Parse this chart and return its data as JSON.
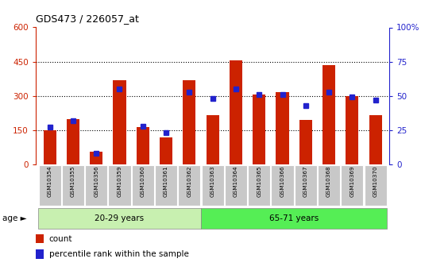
{
  "title": "GDS473 / 226057_at",
  "samples": [
    "GSM10354",
    "GSM10355",
    "GSM10356",
    "GSM10359",
    "GSM10360",
    "GSM10361",
    "GSM10362",
    "GSM10363",
    "GSM10364",
    "GSM10365",
    "GSM10366",
    "GSM10367",
    "GSM10368",
    "GSM10369",
    "GSM10370"
  ],
  "counts": [
    150,
    200,
    55,
    370,
    165,
    120,
    370,
    215,
    455,
    305,
    315,
    195,
    435,
    300,
    215
  ],
  "percentiles": [
    27,
    32,
    8,
    55,
    28,
    23,
    53,
    48,
    55,
    51,
    51,
    43,
    53,
    49,
    47
  ],
  "group1_label": "20-29 years",
  "group2_label": "65-71 years",
  "group1_count": 7,
  "group2_count": 8,
  "bar_color": "#cc2200",
  "marker_color": "#2222cc",
  "age_label": "age",
  "group1_bg": "#c8f0b0",
  "group2_bg": "#55ee55",
  "tick_bg": "#c8c8c8",
  "left_axis_color": "#cc2200",
  "right_axis_color": "#2222cc",
  "ylim_left": [
    0,
    600
  ],
  "ylim_right": [
    0,
    100
  ],
  "yticks_left": [
    0,
    150,
    300,
    450,
    600
  ],
  "yticks_right": [
    0,
    25,
    50,
    75,
    100
  ],
  "legend_count_label": "count",
  "legend_pct_label": "percentile rank within the sample",
  "plot_bg": "#ffffff",
  "fig_bg": "#ffffff"
}
